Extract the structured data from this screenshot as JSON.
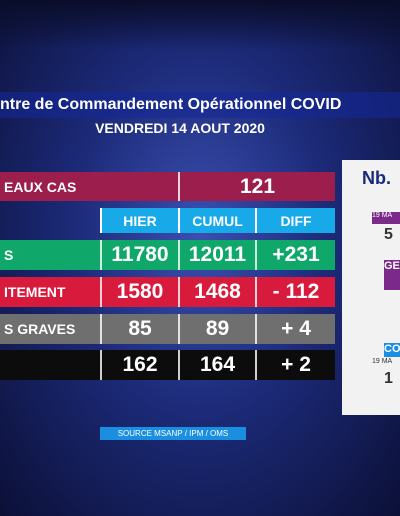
{
  "header": {
    "title": "ntre de Commandement Opérationnel COVID",
    "date": "VENDREDI 14 AOUT 2020"
  },
  "new_cases": {
    "label": "EAUX CAS",
    "value": "121"
  },
  "table": {
    "columns": [
      "HIER",
      "CUMUL",
      "DIFF"
    ],
    "rows": [
      [
        "S",
        "11780",
        "12011",
        "+231"
      ],
      [
        "ITEMENT",
        "1580",
        "1468",
        "- 112"
      ],
      [
        "S GRAVES",
        "85",
        "89",
        "+ 4"
      ],
      [
        null,
        "162",
        "164",
        "+ 2"
      ]
    ]
  },
  "source": "SOURCE MSANP / IPM / OMS",
  "side": {
    "title": "Nb.",
    "items": [
      {
        "date": "19 MA",
        "value": "5"
      },
      {
        "heading": "GE"
      },
      {
        "heading": "CO",
        "date": "19 MA",
        "value": "1"
      }
    ]
  }
}
